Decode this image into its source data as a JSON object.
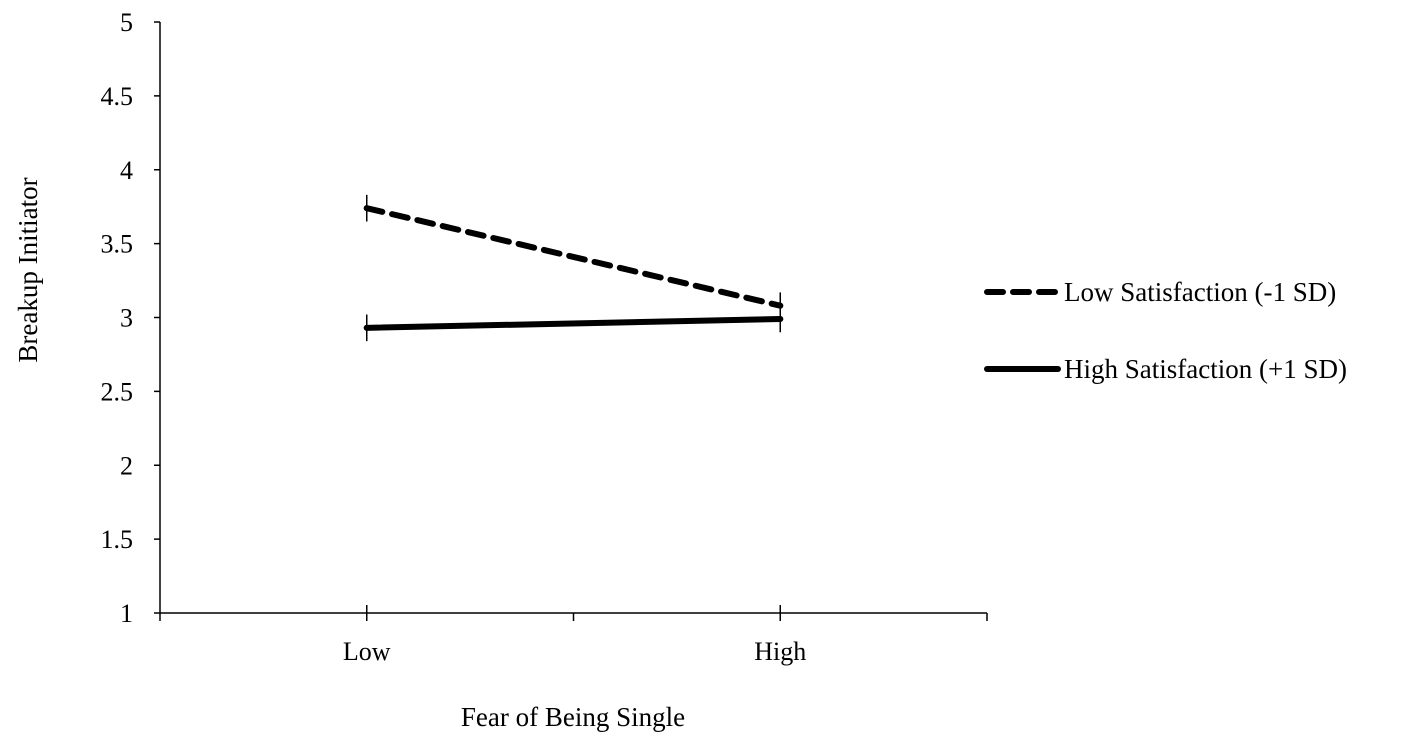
{
  "chart_data": {
    "type": "line",
    "title": "",
    "xlabel": "Fear of Being Single",
    "ylabel": "Breakup Initiator",
    "categories": [
      "Low",
      "High"
    ],
    "ylim": [
      1,
      5
    ],
    "yticks": [
      "1",
      "1.5",
      "2",
      "2.5",
      "3",
      "3.5",
      "4",
      "4.5",
      "5"
    ],
    "grid": false,
    "legend_position": "right",
    "series": [
      {
        "name": "Low Satisfaction (-1 SD)",
        "values": [
          3.74,
          3.08
        ],
        "errors": [
          0.09,
          0.09
        ],
        "style": "dashed",
        "color": "#000000"
      },
      {
        "name": "High Satisfaction (+1 SD)",
        "values": [
          2.93,
          2.99
        ],
        "errors": [
          0.09,
          0.09
        ],
        "style": "solid",
        "color": "#000000"
      }
    ]
  }
}
